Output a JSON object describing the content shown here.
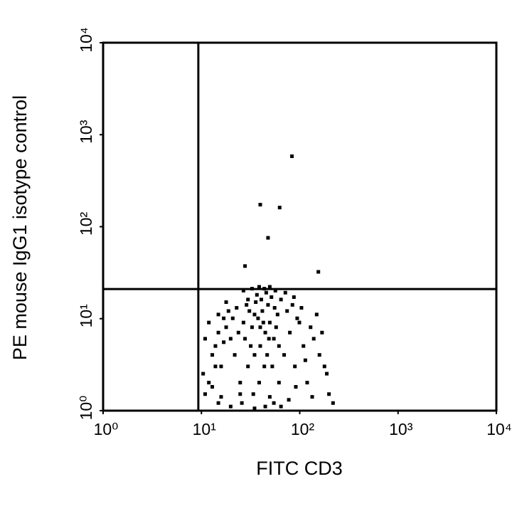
{
  "chart_data": {
    "type": "scatter",
    "x_label": "FITC CD3",
    "y_label": "PE mouse IgG1 isotype control",
    "log_x": true,
    "log_y": true,
    "xlim": [
      1,
      10000
    ],
    "ylim": [
      1,
      10000
    ],
    "xticks": [
      {
        "value": 1,
        "label": "10⁰"
      },
      {
        "value": 10,
        "label": "10¹"
      },
      {
        "value": 100,
        "label": "10²"
      },
      {
        "value": 1000,
        "label": "10³"
      },
      {
        "value": 10000,
        "label": "10⁴"
      }
    ],
    "yticks": [
      {
        "value": 1,
        "label": "10⁰"
      },
      {
        "value": 10,
        "label": "10¹"
      },
      {
        "value": 100,
        "label": "10²"
      },
      {
        "value": 1000,
        "label": "10³"
      },
      {
        "value": 10000,
        "label": "10⁴"
      }
    ],
    "gate_x": 9.3,
    "gate_y": 21,
    "color": "#000000",
    "x": [
      25,
      30,
      35,
      40,
      28,
      33,
      45,
      38,
      42,
      50,
      22,
      27,
      31,
      36,
      48,
      55,
      60,
      44,
      39,
      34,
      26,
      29,
      37,
      41,
      46,
      52,
      58,
      24,
      32,
      43,
      47,
      53,
      21,
      23,
      35,
      40,
      49,
      56,
      62,
      30,
      12,
      14,
      16,
      18,
      11,
      13,
      15,
      17,
      19,
      20,
      12,
      15,
      18,
      70,
      80,
      90,
      100,
      110,
      120,
      140,
      160,
      180,
      200,
      220,
      75,
      85,
      95,
      130,
      150,
      170,
      65,
      72,
      88,
      105,
      62,
      78,
      92,
      115,
      135,
      190,
      20,
      35,
      45,
      55,
      65,
      25,
      50,
      15,
      10.5,
      11,
      13,
      14,
      16,
      17,
      84,
      40,
      63,
      48,
      28,
      156,
      27,
      33,
      39,
      44,
      50,
      57
    ],
    "y": [
      2,
      3,
      4,
      5,
      6,
      8,
      7,
      10,
      12,
      9,
      4,
      9,
      12,
      15,
      14,
      6,
      11,
      3,
      2,
      1.5,
      1.2,
      14,
      18,
      16,
      19,
      17,
      8,
      7,
      5,
      9,
      4,
      3,
      10,
      13,
      11,
      8,
      6,
      13,
      5,
      16,
      2,
      5,
      3,
      8,
      1.5,
      4,
      7,
      10,
      12,
      6,
      9,
      11,
      15,
      4,
      7,
      3,
      9,
      5,
      2,
      6,
      4,
      3,
      1.5,
      1.2,
      12,
      14,
      10,
      8,
      11,
      7,
      16,
      19,
      17,
      13,
      2,
      1.3,
      1.8,
      3.5,
      1.4,
      2.5,
      1.1,
      1.05,
      1.1,
      1.2,
      1.1,
      1.5,
      1.4,
      1.2,
      2.5,
      6,
      1.8,
      3,
      1.4,
      5.5,
      578,
      172,
      160,
      75,
      37,
      32,
      20,
      21,
      22,
      21,
      22,
      20
    ]
  }
}
